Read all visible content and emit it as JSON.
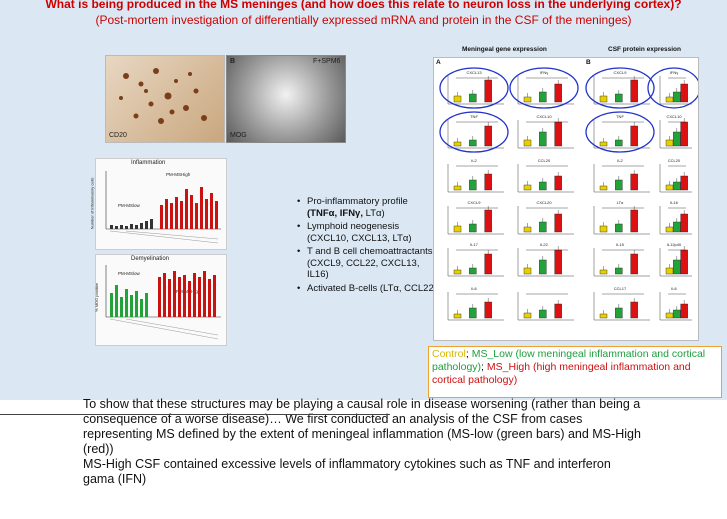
{
  "title": {
    "line1": "What is being produced in the MS meninges (and how does this relate to neuron loss in the underlying cortex)?",
    "line2": "(Post-mortem investigation of differentially expressed mRNA and protein in the CSF of the meninges)"
  },
  "images": {
    "a_label": "CD20",
    "b_tag": "B",
    "b_label": "MOG",
    "b_corner": "F+SPM6"
  },
  "left_charts": {
    "top_title": "Inflammation",
    "top_tag_high": "PM-MSHigh",
    "top_tag_low": "PM-MSlow",
    "top_ylabel": "Number of inflammatory cells",
    "bottom_title": "Demyelination",
    "bottom_tag_low": "PM-MSlow",
    "bottom_tag_high": "PM-MSHigh",
    "bottom_ylabel": "% MOG positive"
  },
  "bullets": [
    {
      "pre": "Pro-inflammatory profile ",
      "bold": "(TNFα, IFNγ,",
      "post": " LTα)"
    },
    {
      "pre": "Lymphoid neogenesis (CXCL10, CXCL13, LTα)",
      "bold": "",
      "post": ""
    },
    {
      "pre": "T and B cell chemoattractants (CXCL9, CCL22, CXCL13, IL16)",
      "bold": "",
      "post": ""
    },
    {
      "pre": "Activated B-cells (LTα, CCL22)",
      "bold": "",
      "post": ""
    }
  ],
  "right_figure": {
    "heading_gene": "Meningeal gene expression",
    "heading_protein": "CSF protein expression",
    "panel_a": "A",
    "panel_b": "B",
    "gene_panels": [
      "CXCL13",
      "IFNγ",
      "TNF",
      "CXCL10",
      "IL2",
      "CCL20",
      "CXCL9",
      "CXCL20",
      "IL17",
      "IL22",
      "IL6",
      ""
    ],
    "protein_panels": [
      "CXCL9",
      "IFNγ",
      "TNF",
      "CXCL10",
      "IL2",
      "CCL20",
      "LTα",
      "IL16",
      "IL15",
      "IL12p40",
      "CCL17",
      "IL6"
    ]
  },
  "legend": {
    "control": "Control",
    "sep1": "; ",
    "ms_low": "MS_Low (low meningeal inflammation and cortical pathology)",
    "sep2": "; ",
    "ms_high": "MS_High (high meningeal inflammation and cortical pathology)"
  },
  "body": {
    "p1": "To show that these structures may be playing a causal role in disease worsening (rather than being a consequence of a worse disease)… We first conducted an analysis of the CSF from cases representing MS defined by the extent of meningeal inflammation (MS-low (green bars) and MS-High (red))",
    "p2": "MS-High CSF contained excessive levels of inflammatory cytokines such as TNF and interferon gama (IFN)"
  },
  "colors": {
    "control": "#e8d000",
    "ms_low": "#22a33a",
    "ms_high": "#dd1111",
    "highlight_ring": "#2233cc"
  }
}
